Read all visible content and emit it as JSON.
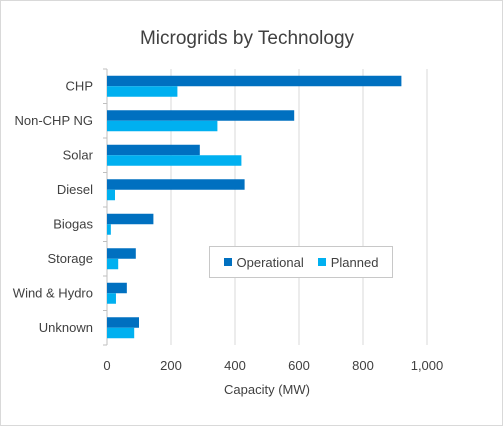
{
  "chart_data": {
    "type": "bar",
    "orientation": "horizontal",
    "title": "Microgrids by Technology",
    "xlabel": "Capacity (MW)",
    "ylabel": "",
    "xlim": [
      0,
      1000
    ],
    "x_ticks": [
      0,
      200,
      400,
      600,
      800,
      1000
    ],
    "x_tick_labels": [
      "0",
      "200",
      "400",
      "600",
      "800",
      "1,000"
    ],
    "grid": "vertical",
    "legend_position": "inside-right",
    "categories": [
      "CHP",
      "Non-CHP NG",
      "Solar",
      "Diesel",
      "Biogas",
      "Storage",
      "Wind & Hydro",
      "Unknown"
    ],
    "series": [
      {
        "name": "Operational",
        "color": "#0070c0",
        "values": [
          920,
          585,
          290,
          430,
          145,
          90,
          62,
          100
        ]
      },
      {
        "name": "Planned",
        "color": "#00b0f0",
        "values": [
          220,
          345,
          420,
          25,
          12,
          35,
          28,
          85
        ]
      }
    ]
  }
}
